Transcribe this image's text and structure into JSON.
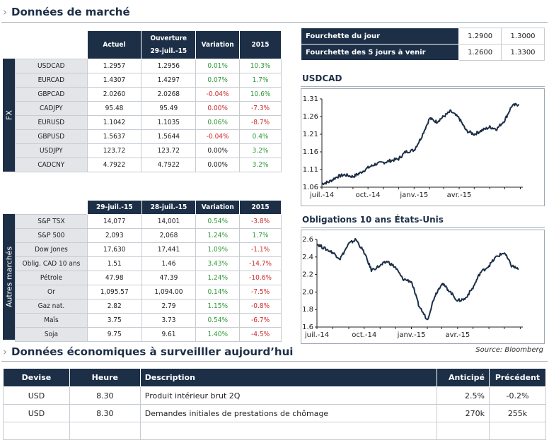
{
  "market": {
    "title": "Données de marché",
    "fx_label": "FX",
    "fx_headers": [
      "Actuel",
      "Ouverture 29-juil.-15",
      "Variation",
      "2015"
    ],
    "fx_rows": [
      {
        "name": "USDCAD",
        "actuel": "1.2957",
        "ouverture": "1.2956",
        "variation": "0.01%",
        "var_dir": "pos",
        "ytd": "10.3%",
        "ytd_dir": "pos"
      },
      {
        "name": "EURCAD",
        "actuel": "1.4307",
        "ouverture": "1.4297",
        "variation": "0.07%",
        "var_dir": "pos",
        "ytd": "1.7%",
        "ytd_dir": "pos"
      },
      {
        "name": "GBPCAD",
        "actuel": "2.0260",
        "ouverture": "2.0268",
        "variation": "-0.04%",
        "var_dir": "neg",
        "ytd": "10.6%",
        "ytd_dir": "pos"
      },
      {
        "name": "CADJPY",
        "actuel": "95.48",
        "ouverture": "95.49",
        "variation": "0.00%",
        "var_dir": "neg",
        "ytd": "-7.3%",
        "ytd_dir": "neg"
      },
      {
        "name": "EURUSD",
        "actuel": "1.1042",
        "ouverture": "1.1035",
        "variation": "0.06%",
        "var_dir": "pos",
        "ytd": "-8.7%",
        "ytd_dir": "neg"
      },
      {
        "name": "GBPUSD",
        "actuel": "1.5637",
        "ouverture": "1.5644",
        "variation": "-0.04%",
        "var_dir": "neg",
        "ytd": "0.4%",
        "ytd_dir": "pos"
      },
      {
        "name": "USDJPY",
        "actuel": "123.72",
        "ouverture": "123.72",
        "variation": "0.00%",
        "var_dir": "neu",
        "ytd": "3.2%",
        "ytd_dir": "pos"
      },
      {
        "name": "CADCNY",
        "actuel": "4.7922",
        "ouverture": "4.7922",
        "variation": "0.00%",
        "var_dir": "neu",
        "ytd": "3.2%",
        "ytd_dir": "pos"
      }
    ],
    "other_label": "Autres marchés",
    "other_headers": [
      "29-juil.-15",
      "28-juil.-15",
      "Variation",
      "2015"
    ],
    "other_rows": [
      {
        "name": "S&P TSX",
        "d1": "14,077",
        "d2": "14,001",
        "variation": "0.54%",
        "var_dir": "pos",
        "ytd": "-3.8%",
        "ytd_dir": "neg"
      },
      {
        "name": "S&P 500",
        "d1": "2,093",
        "d2": "2,068",
        "variation": "1.24%",
        "var_dir": "pos",
        "ytd": "1.7%",
        "ytd_dir": "pos"
      },
      {
        "name": "Dow Jones",
        "d1": "17,630",
        "d2": "17,441",
        "variation": "1.09%",
        "var_dir": "pos",
        "ytd": "-1.1%",
        "ytd_dir": "neg"
      },
      {
        "name": "Oblig. CAD 10 ans",
        "d1": "1.51",
        "d2": "1.46",
        "variation": "3.43%",
        "var_dir": "pos",
        "ytd": "-14.7%",
        "ytd_dir": "neg"
      },
      {
        "name": "Pétrole",
        "d1": "47.98",
        "d2": "47.39",
        "variation": "1.24%",
        "var_dir": "pos",
        "ytd": "-10.6%",
        "ytd_dir": "neg"
      },
      {
        "name": "Or",
        "d1": "1,095.57",
        "d2": "1,094.00",
        "variation": "0.14%",
        "var_dir": "pos",
        "ytd": "-7.5%",
        "ytd_dir": "neg"
      },
      {
        "name": "Gaz nat.",
        "d1": "2.82",
        "d2": "2.79",
        "variation": "1.15%",
        "var_dir": "pos",
        "ytd": "-0.8%",
        "ytd_dir": "neg"
      },
      {
        "name": "Maïs",
        "d1": "3.75",
        "d2": "3.73",
        "variation": "0.54%",
        "var_dir": "pos",
        "ytd": "-6.7%",
        "ytd_dir": "neg"
      },
      {
        "name": "Soja",
        "d1": "9.75",
        "d2": "9.61",
        "variation": "1.40%",
        "var_dir": "pos",
        "ytd": "-4.5%",
        "ytd_dir": "neg"
      }
    ]
  },
  "ranges": [
    {
      "label": "Fourchette du jour",
      "low": "1.2900",
      "high": "1.3000"
    },
    {
      "label": "Fourchette des 5 jours à venir",
      "low": "1.2600",
      "high": "1.3300"
    }
  ],
  "source": "Source: Bloomberg",
  "economic": {
    "title": "Données économiques à surveilller aujourd’hui",
    "headers": [
      "Devise",
      "Heure",
      "Description",
      "Anticipé",
      "Précédent"
    ],
    "rows": [
      {
        "devise": "USD",
        "heure": "8.30",
        "description": "Produit intérieur brut 2Q",
        "anticipe": "2.5%",
        "precedent": "-0.2%"
      },
      {
        "devise": "USD",
        "heure": "8.30",
        "description": "Demandes initiales de prestations de chômage",
        "anticipe": "270k",
        "precedent": "255k"
      },
      {
        "devise": "",
        "heure": "",
        "description": "",
        "anticipe": "",
        "precedent": ""
      }
    ]
  },
  "colors": {
    "navy": "#1c2f47",
    "positive": "#2f9a3a",
    "negative": "#d02b2b"
  },
  "chart_data": [
    {
      "type": "line",
      "title": "USDCAD",
      "xlabel": "",
      "ylabel": "",
      "x_ticks": [
        "juil.-14",
        "oct.-14",
        "janv.-15",
        "avr.-15"
      ],
      "y_ticks": [
        1.06,
        1.11,
        1.16,
        1.21,
        1.26,
        1.31
      ],
      "ylim": [
        1.06,
        1.31
      ],
      "grid": false,
      "x": [
        "2014-07-01",
        "2014-07-15",
        "2014-08-01",
        "2014-08-15",
        "2014-09-01",
        "2014-09-15",
        "2014-10-01",
        "2014-10-15",
        "2014-11-01",
        "2014-11-15",
        "2014-12-01",
        "2014-12-15",
        "2015-01-01",
        "2015-01-15",
        "2015-02-01",
        "2015-02-15",
        "2015-03-01",
        "2015-03-15",
        "2015-04-01",
        "2015-04-15",
        "2015-05-01",
        "2015-05-15",
        "2015-06-01",
        "2015-06-15",
        "2015-07-01",
        "2015-07-15",
        "2015-07-29"
      ],
      "values": [
        1.07,
        1.075,
        1.09,
        1.095,
        1.09,
        1.1,
        1.115,
        1.125,
        1.13,
        1.135,
        1.14,
        1.16,
        1.165,
        1.2,
        1.255,
        1.245,
        1.26,
        1.275,
        1.255,
        1.22,
        1.21,
        1.22,
        1.23,
        1.225,
        1.25,
        1.29,
        1.295
      ]
    },
    {
      "type": "line",
      "title": "Obligations 10 ans États-Unis",
      "xlabel": "",
      "ylabel": "",
      "x_ticks": [
        "juil.-14",
        "oct.-14",
        "janv.-15",
        "avr.-15"
      ],
      "y_ticks": [
        1.6,
        1.8,
        2.0,
        2.2,
        2.4,
        2.6
      ],
      "ylim": [
        1.6,
        2.6
      ],
      "grid": false,
      "x": [
        "2014-07-01",
        "2014-07-15",
        "2014-08-01",
        "2014-08-15",
        "2014-09-01",
        "2014-09-15",
        "2014-10-01",
        "2014-10-15",
        "2014-11-01",
        "2014-11-15",
        "2014-12-01",
        "2014-12-15",
        "2015-01-01",
        "2015-01-15",
        "2015-02-01",
        "2015-02-15",
        "2015-03-01",
        "2015-03-15",
        "2015-04-01",
        "2015-04-15",
        "2015-05-01",
        "2015-05-15",
        "2015-06-01",
        "2015-06-15",
        "2015-07-01",
        "2015-07-15",
        "2015-07-29"
      ],
      "values": [
        2.55,
        2.5,
        2.45,
        2.38,
        2.55,
        2.6,
        2.45,
        2.25,
        2.3,
        2.35,
        2.28,
        2.15,
        2.12,
        1.85,
        1.68,
        1.95,
        2.1,
        2.02,
        1.9,
        1.92,
        2.05,
        2.22,
        2.3,
        2.4,
        2.45,
        2.3,
        2.26
      ]
    }
  ]
}
